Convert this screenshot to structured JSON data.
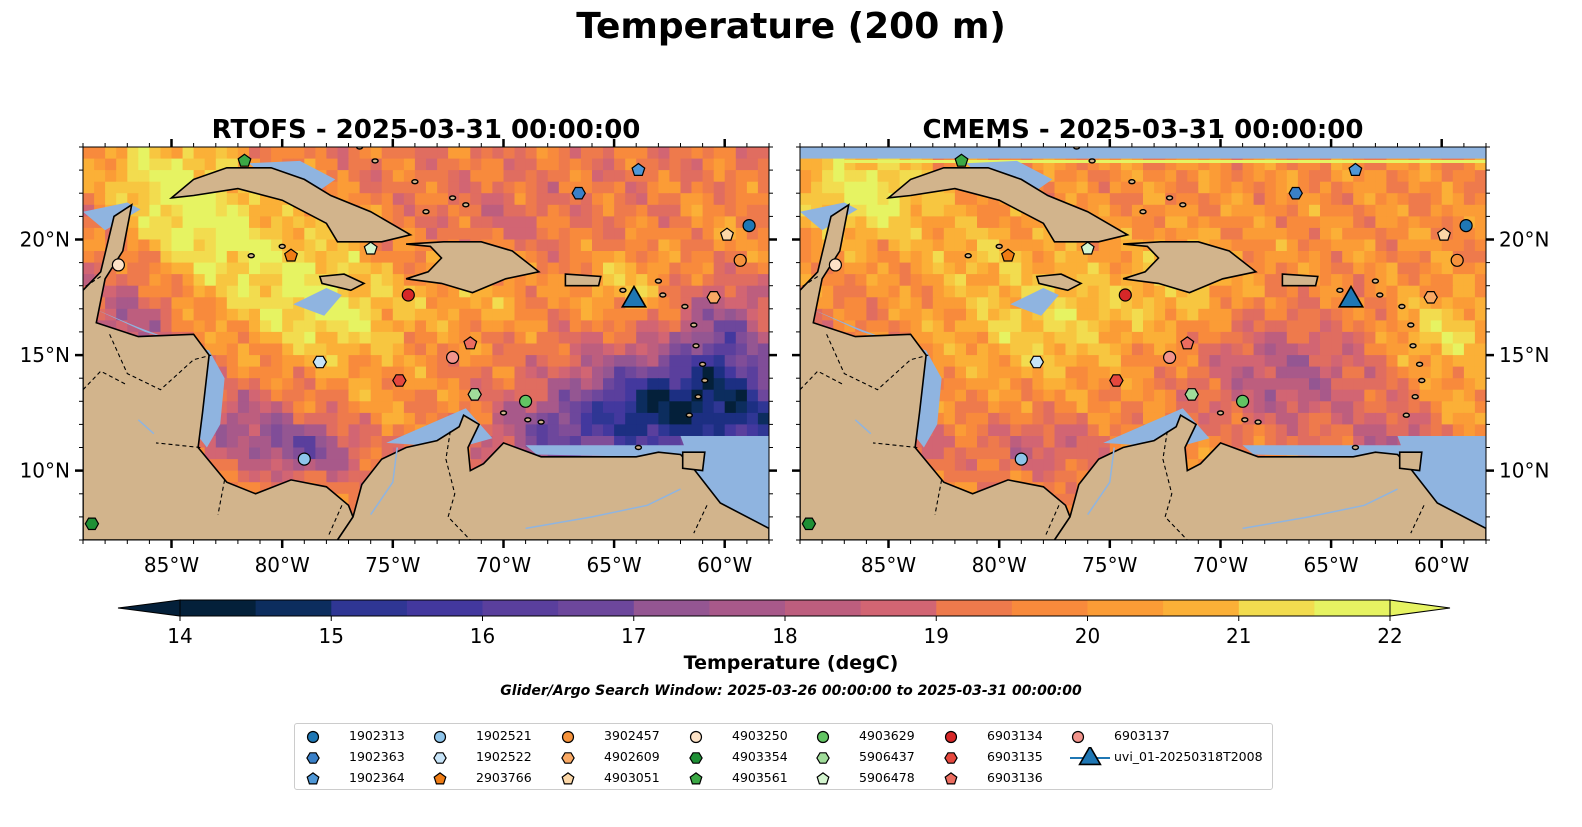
{
  "figure": {
    "suptitle": "Temperature (200 m)",
    "colorbar_label": "Temperature (degC)",
    "subtitle": "Glider/Argo Search Window: 2025-03-26 00:00:00 to 2025-03-31 00:00:00"
  },
  "colors": {
    "land": "#d2b48c",
    "shelf_water": "#8fb4e0",
    "coast": "#000000",
    "cmap": [
      "#04203a",
      "#0c2d5e",
      "#1c2f82",
      "#2f3694",
      "#43389e",
      "#5a3f9d",
      "#6d479c",
      "#804d98",
      "#945692",
      "#a8598a",
      "#bd5e7e",
      "#d26573",
      "#e06d60",
      "#ee7a4c",
      "#f88a3c",
      "#fb9c36",
      "#fbb037",
      "#f7c640",
      "#f2dc4f",
      "#e6f362"
    ]
  },
  "chart_data": [
    {
      "type": "heatmap",
      "title": "RTOFS - 2025-03-31 00:00:00",
      "variable": "Temperature at 200 m",
      "units": "degC",
      "xlim": [
        -89,
        -58
      ],
      "ylim": [
        7,
        24
      ],
      "xticks": [
        -85,
        -80,
        -75,
        -70,
        -65,
        -60
      ],
      "xtick_labels": [
        "85°W",
        "80°W",
        "75°W",
        "70°W",
        "65°W",
        "60°W"
      ],
      "yticks": [
        10,
        15,
        20
      ],
      "ytick_labels": [
        "10°N",
        "15°N",
        "20°N"
      ],
      "ytick_side": "left",
      "vmin": 14,
      "vmax": 22,
      "notes": "warmest (>21) west Caribbean/Cayman and Yucatan; coldest (<15) southeast Caribbean near 63W 12N and central Colombian basin"
    },
    {
      "type": "heatmap",
      "title": "CMEMS - 2025-03-31 00:00:00",
      "variable": "Temperature at 200 m",
      "units": "degC",
      "xlim": [
        -89,
        -58
      ],
      "ylim": [
        7,
        24
      ],
      "xticks": [
        -85,
        -80,
        -75,
        -70,
        -65,
        -60
      ],
      "xtick_labels": [
        "85°W",
        "80°W",
        "75°W",
        "70°W",
        "65°W",
        "60°W"
      ],
      "yticks": [
        10,
        15,
        20
      ],
      "ytick_labels": [
        "10°N",
        "15°N",
        "20°N"
      ],
      "ytick_side": "right",
      "vmin": 14,
      "vmax": 22
    },
    {
      "type": "bar",
      "title": "Temperature (degC)",
      "orientation": "horizontal",
      "extend": "both",
      "vmin": 14,
      "vmax": 22,
      "step": 0.5,
      "ticks": [
        14,
        15,
        16,
        17,
        18,
        19,
        20,
        21,
        22
      ]
    }
  ],
  "stations": [
    {
      "id": "1902313",
      "marker": "circle",
      "color": "#1f77b4",
      "lon": -58.9,
      "lat": 20.6
    },
    {
      "id": "1902363",
      "marker": "hexagon",
      "color": "#3a80c8",
      "lon": -66.6,
      "lat": 22.0
    },
    {
      "id": "1902364",
      "marker": "pentagon",
      "color": "#4f97d6",
      "lon": -63.9,
      "lat": 23.0
    },
    {
      "id": "1902521",
      "marker": "circle",
      "color": "#8ec4ea",
      "lon": -79.0,
      "lat": 10.5
    },
    {
      "id": "1902522",
      "marker": "hexagon",
      "color": "#c7e4f8",
      "lon": -78.3,
      "lat": 14.7
    },
    {
      "id": "2903766",
      "marker": "pentagon",
      "color": "#ef7c14",
      "lon": -79.6,
      "lat": 19.3
    },
    {
      "id": "3902457",
      "marker": "circle",
      "color": "#f6933c",
      "lon": -59.3,
      "lat": 19.1
    },
    {
      "id": "4902609",
      "marker": "hexagon",
      "color": "#f9a964",
      "lon": -60.5,
      "lat": 17.5
    },
    {
      "id": "4903051",
      "marker": "pentagon",
      "color": "#fcd7a7",
      "lon": -59.9,
      "lat": 20.2
    },
    {
      "id": "4903250",
      "marker": "circle",
      "color": "#fde2c6",
      "lon": -87.4,
      "lat": 18.9
    },
    {
      "id": "4903354",
      "marker": "hexagon",
      "color": "#1e8f35",
      "lon": -88.6,
      "lat": 7.7
    },
    {
      "id": "4903561",
      "marker": "pentagon",
      "color": "#3ba845",
      "lon": -81.7,
      "lat": 23.4
    },
    {
      "id": "4903629",
      "marker": "circle",
      "color": "#62c463",
      "lon": -69.0,
      "lat": 13.0
    },
    {
      "id": "5906437",
      "marker": "hexagon",
      "color": "#a0dc9a",
      "lon": -71.3,
      "lat": 13.3
    },
    {
      "id": "5906478",
      "marker": "pentagon",
      "color": "#d4f5cf",
      "lon": -76.0,
      "lat": 19.6
    },
    {
      "id": "6903134",
      "marker": "circle",
      "color": "#d62728",
      "lon": -74.3,
      "lat": 17.6
    },
    {
      "id": "6903135",
      "marker": "hexagon",
      "color": "#e5483e",
      "lon": -74.7,
      "lat": 13.9
    },
    {
      "id": "6903136",
      "marker": "pentagon",
      "color": "#ec6d60",
      "lon": -71.5,
      "lat": 15.5
    },
    {
      "id": "6903137",
      "marker": "circle",
      "color": "#f2948c",
      "lon": -72.3,
      "lat": 14.9
    },
    {
      "id": "uvi_01-20250318T2008",
      "marker": "triangle",
      "color": "#1f77b4",
      "lon": -64.1,
      "lat": 17.5
    }
  ],
  "legend_rows": 3
}
